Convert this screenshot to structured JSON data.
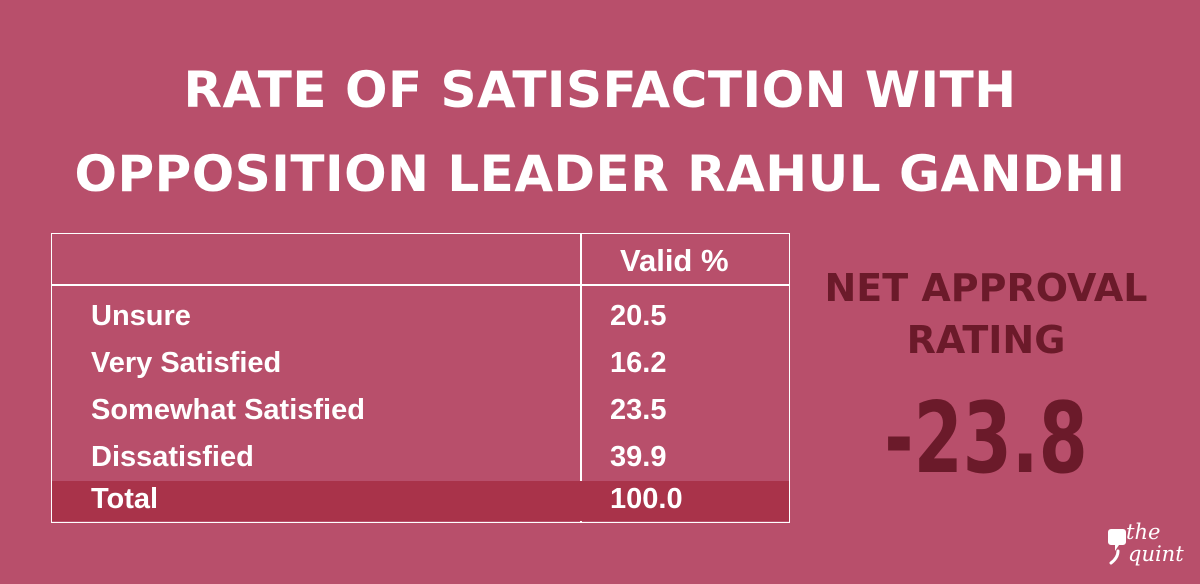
{
  "chart_data": {
    "type": "table",
    "title_lines": [
      "RATE OF SATISFACTION WITH",
      "OPPOSITION LEADER RAHUL GANDHI"
    ],
    "column_header": "Valid %",
    "rows": [
      {
        "label": "Unsure",
        "value": "20.5"
      },
      {
        "label": "Very Satisfied",
        "value": "16.2"
      },
      {
        "label": "Somewhat Satisfied",
        "value": "23.5"
      },
      {
        "label": "Dissatisfied",
        "value": "39.9"
      }
    ],
    "total": {
      "label": "Total",
      "value": "100.0"
    },
    "net_approval": {
      "label_lines": [
        "NET APPROVAL",
        "RATING"
      ],
      "value": "-23.8"
    }
  },
  "colors": {
    "background": "#b84f6b",
    "total_row": "#a9334a",
    "net_approval_text": "#6b1a2a"
  },
  "logo": {
    "icon": "quint-quote-icon",
    "line1": "the",
    "line2": "quint"
  }
}
